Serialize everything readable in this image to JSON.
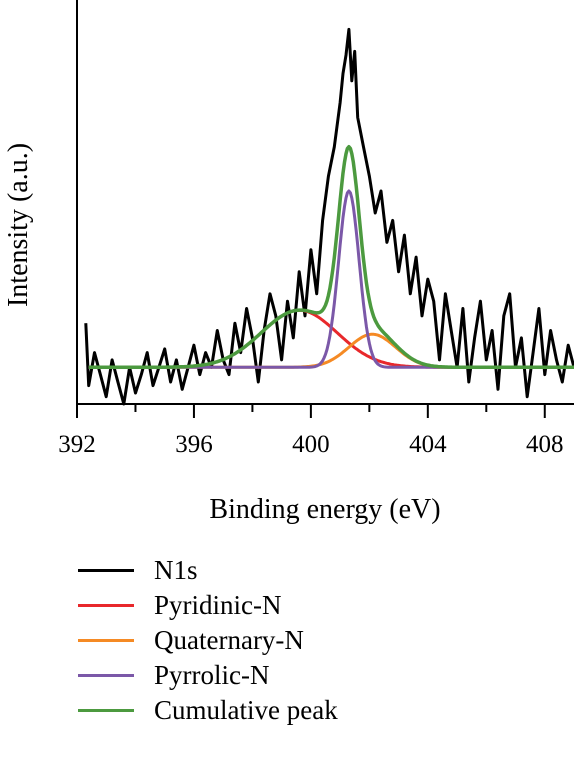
{
  "chart_data": {
    "type": "line",
    "title": "",
    "xlabel": "Binding energy (eV)",
    "ylabel": "Intensity (a.u.)",
    "xlim": [
      392,
      409
    ],
    "ylim": [
      0,
      1.1
    ],
    "x_ticks": [
      392,
      396,
      400,
      404,
      408
    ],
    "y_ticks": [],
    "grid": false,
    "legend_position": "bottom",
    "baseline": 0.1,
    "series": [
      {
        "name": "N1s",
        "color": "#000000",
        "x": [
          392.3,
          392.4,
          392.6,
          392.8,
          393.0,
          393.2,
          393.4,
          393.6,
          393.8,
          394.0,
          394.2,
          394.4,
          394.6,
          394.8,
          395.0,
          395.2,
          395.4,
          395.6,
          395.8,
          396.0,
          396.2,
          396.4,
          396.6,
          396.8,
          397.0,
          397.2,
          397.4,
          397.6,
          397.8,
          398.0,
          398.2,
          398.4,
          398.6,
          398.8,
          399.0,
          399.2,
          399.4,
          399.6,
          399.8,
          400.0,
          400.2,
          400.4,
          400.6,
          400.8,
          401.0,
          401.1,
          401.2,
          401.3,
          401.4,
          401.5,
          401.6,
          401.8,
          402.0,
          402.2,
          402.4,
          402.6,
          402.8,
          403.0,
          403.2,
          403.4,
          403.6,
          403.8,
          404.0,
          404.2,
          404.4,
          404.6,
          404.8,
          405.0,
          405.2,
          405.4,
          405.6,
          405.8,
          406.0,
          406.2,
          406.4,
          406.6,
          406.8,
          407.0,
          407.2,
          407.4,
          407.6,
          407.8,
          408.0,
          408.2,
          408.4,
          408.6,
          408.8,
          409.0
        ],
        "y": [
          0.22,
          0.05,
          0.14,
          0.08,
          0.02,
          0.12,
          0.06,
          0.0,
          0.1,
          0.03,
          0.08,
          0.14,
          0.05,
          0.1,
          0.15,
          0.06,
          0.12,
          0.04,
          0.1,
          0.16,
          0.08,
          0.14,
          0.1,
          0.2,
          0.12,
          0.08,
          0.22,
          0.14,
          0.26,
          0.18,
          0.06,
          0.2,
          0.3,
          0.24,
          0.12,
          0.28,
          0.18,
          0.36,
          0.24,
          0.42,
          0.3,
          0.5,
          0.62,
          0.7,
          0.82,
          0.9,
          0.95,
          1.02,
          0.88,
          0.96,
          0.78,
          0.7,
          0.62,
          0.52,
          0.58,
          0.44,
          0.5,
          0.36,
          0.46,
          0.3,
          0.4,
          0.24,
          0.34,
          0.28,
          0.12,
          0.3,
          0.2,
          0.1,
          0.26,
          0.06,
          0.18,
          0.28,
          0.12,
          0.2,
          0.04,
          0.24,
          0.3,
          0.1,
          0.18,
          0.02,
          0.14,
          0.26,
          0.08,
          0.2,
          0.12,
          0.06,
          0.16,
          0.1
        ]
      },
      {
        "name": "Pyridinic-N",
        "color": "#e8282b",
        "peak_center": 399.6,
        "peak_sigma": 1.3,
        "peak_height": 0.155
      },
      {
        "name": "Quaternary-N",
        "color": "#f58a24",
        "peak_center": 402.1,
        "peak_sigma": 0.8,
        "peak_height": 0.09
      },
      {
        "name": "Pyrrolic-N",
        "color": "#7b58a8",
        "peak_center": 401.3,
        "peak_sigma": 0.35,
        "peak_height": 0.48
      },
      {
        "name": "Cumulative peak",
        "color": "#4c9a3f"
      }
    ]
  }
}
